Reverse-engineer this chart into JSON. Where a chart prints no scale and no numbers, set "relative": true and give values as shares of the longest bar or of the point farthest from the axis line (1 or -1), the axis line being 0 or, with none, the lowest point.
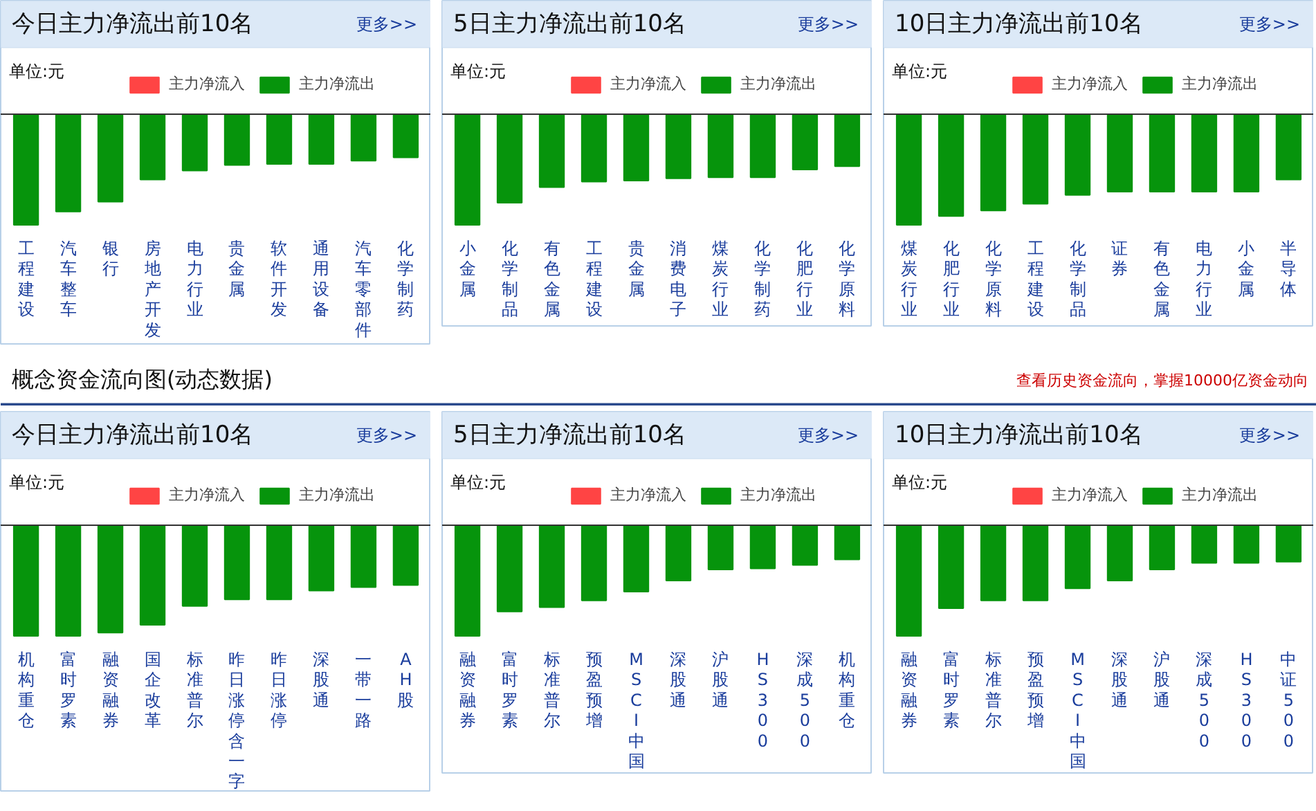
{
  "chart_data": [
    {
      "type": "bar",
      "title": "今日主力净流出前10名",
      "annotations": [
        "单位:元",
        "更多>>"
      ],
      "relative": true,
      "legend": "top right",
      "grid": false,
      "categories": [
        "工程建设",
        "汽车整车",
        "银行",
        "房地产开发",
        "电力行业",
        "贵金属",
        "软件开发",
        "通用设备",
        "汽车零部件",
        "化学制药"
      ],
      "series": [
        {
          "name": "主力净流入",
          "color": "#ff4444",
          "values": [
            null,
            null,
            null,
            null,
            null,
            null,
            null,
            null,
            null,
            null
          ]
        },
        {
          "name": "主力净流出",
          "color": "#06940c",
          "values": [
            -1,
            -0.88,
            -0.79,
            -0.59,
            -0.51,
            -0.46,
            -0.45,
            -0.45,
            -0.42,
            -0.39
          ]
        }
      ]
    },
    {
      "type": "bar",
      "title": "5日主力净流出前10名",
      "annotations": [
        "单位:元",
        "更多>>"
      ],
      "relative": true,
      "legend": "top right",
      "grid": false,
      "categories": [
        "小金属",
        "化学制品",
        "有色金属",
        "工程建设",
        "贵金属",
        "消费电子",
        "煤炭行业",
        "化学制药",
        "化肥行业",
        "化学原料"
      ],
      "series": [
        {
          "name": "主力净流入",
          "color": "#ff4444",
          "values": [
            null,
            null,
            null,
            null,
            null,
            null,
            null,
            null,
            null,
            null
          ]
        },
        {
          "name": "主力净流出",
          "color": "#06940c",
          "values": [
            -1,
            -0.8,
            -0.66,
            -0.61,
            -0.6,
            -0.58,
            -0.57,
            -0.57,
            -0.5,
            -0.47
          ]
        }
      ]
    },
    {
      "type": "bar",
      "title": "10日主力净流出前10名",
      "annotations": [
        "单位:元",
        "更多>>"
      ],
      "relative": true,
      "legend": "top right",
      "grid": false,
      "categories": [
        "煤炭行业",
        "化肥行业",
        "化学原料",
        "工程建设",
        "化学制品",
        "证券",
        "有色金属",
        "电力行业",
        "小金属",
        "半导体"
      ],
      "series": [
        {
          "name": "主力净流入",
          "color": "#ff4444",
          "values": [
            null,
            null,
            null,
            null,
            null,
            null,
            null,
            null,
            null,
            null
          ]
        },
        {
          "name": "主力净流出",
          "color": "#06940c",
          "values": [
            -1,
            -0.92,
            -0.87,
            -0.81,
            -0.73,
            -0.7,
            -0.7,
            -0.7,
            -0.7,
            -0.59
          ]
        }
      ]
    },
    {
      "type": "other",
      "title": "概念资金流向图(动态数据)",
      "annotations": [
        "查看历史资金流向，掌握10000亿资金动向"
      ]
    },
    {
      "type": "bar",
      "title": "今日主力净流出前10名",
      "annotations": [
        "单位:元",
        "更多>>"
      ],
      "relative": true,
      "legend": "top right",
      "grid": false,
      "categories": [
        "机构重仓",
        "富时罗素",
        "融资融券",
        "国企改革",
        "标准普尔",
        "昨日涨停含一字",
        "昨日涨停",
        "深股通",
        "一带一路",
        "AH股"
      ],
      "series": [
        {
          "name": "主力净流入",
          "color": "#ff4444",
          "values": [
            null,
            null,
            null,
            null,
            null,
            null,
            null,
            null,
            null,
            null
          ]
        },
        {
          "name": "主力净流出",
          "color": "#06940c",
          "values": [
            -1,
            -1,
            -0.97,
            -0.9,
            -0.73,
            -0.67,
            -0.67,
            -0.59,
            -0.56,
            -0.54
          ]
        }
      ]
    },
    {
      "type": "bar",
      "title": "5日主力净流出前10名",
      "annotations": [
        "单位:元",
        "更多>>"
      ],
      "relative": true,
      "legend": "top right",
      "grid": false,
      "categories": [
        "融资融券",
        "富时罗素",
        "标准普尔",
        "预盈预增",
        "MSCI中国",
        "深股通",
        "沪股通",
        "HS300",
        "深成500",
        "机构重仓"
      ],
      "series": [
        {
          "name": "主力净流入",
          "color": "#ff4444",
          "values": [
            null,
            null,
            null,
            null,
            null,
            null,
            null,
            null,
            null,
            null
          ]
        },
        {
          "name": "主力净流出",
          "color": "#06940c",
          "values": [
            -1,
            -0.78,
            -0.74,
            -0.68,
            -0.6,
            -0.5,
            -0.4,
            -0.39,
            -0.36,
            -0.31
          ]
        }
      ]
    },
    {
      "type": "bar",
      "title": "10日主力净流出前10名",
      "annotations": [
        "单位:元",
        "更多>>"
      ],
      "relative": true,
      "legend": "top right",
      "grid": false,
      "categories": [
        "融资融券",
        "富时罗素",
        "标准普尔",
        "预盈预增",
        "MSCI中国",
        "深股通",
        "沪股通",
        "深成500",
        "HS300",
        "中证500"
      ],
      "series": [
        {
          "name": "主力净流入",
          "color": "#ff4444",
          "values": [
            null,
            null,
            null,
            null,
            null,
            null,
            null,
            null,
            null,
            null
          ]
        },
        {
          "name": "主力净流出",
          "color": "#06940c",
          "values": [
            -1,
            -0.75,
            -0.68,
            -0.68,
            -0.57,
            -0.5,
            -0.4,
            -0.34,
            -0.34,
            -0.33
          ]
        }
      ]
    }
  ]
}
